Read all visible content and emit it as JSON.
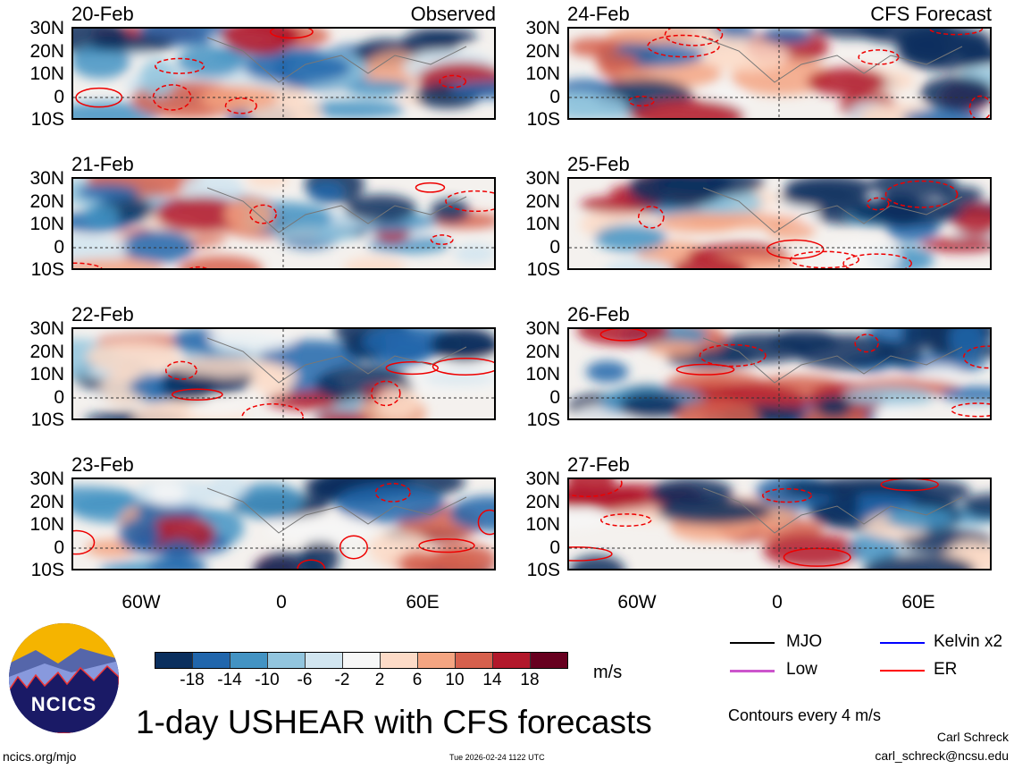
{
  "observed_title": "Observed",
  "forecast_title": "CFS Forecast",
  "observed_dates": [
    "20-Feb",
    "21-Feb",
    "22-Feb",
    "23-Feb"
  ],
  "forecast_dates": [
    "24-Feb",
    "25-Feb",
    "26-Feb",
    "27-Feb"
  ],
  "lat_labels": [
    "30N",
    "20N",
    "10N",
    "0",
    "10S"
  ],
  "lon_labels": [
    "60W",
    "0",
    "60E"
  ],
  "colorbar": {
    "colors": [
      "#0a2f5e",
      "#2166ac",
      "#4393c3",
      "#92c5de",
      "#d1e5f0",
      "#f7f7f7",
      "#fddbc7",
      "#f4a582",
      "#d6604d",
      "#b2182b",
      "#67001f"
    ],
    "labels": [
      "-18",
      "-14",
      "-10",
      "-6",
      "-2",
      "2",
      "6",
      "10",
      "14",
      "18"
    ],
    "units": "m/s"
  },
  "legend": {
    "items": [
      {
        "label": "MJO",
        "color": "#000000"
      },
      {
        "label": "Kelvin x2",
        "color": "#0000ff"
      },
      {
        "label": "Low",
        "color": "#cc55cc"
      },
      {
        "label": "ER",
        "color": "#ff0000"
      }
    ],
    "contours": "Contours every 4 m/s"
  },
  "logo_text": "NCICS",
  "main_title": "1-day USHEAR with CFS forecasts",
  "author": "Carl Schreck",
  "email": "carl_schreck@ncsu.edu",
  "website": "ncics.org/mjo",
  "timestamp": "Tue 2026-02-24 1122 UTC"
}
